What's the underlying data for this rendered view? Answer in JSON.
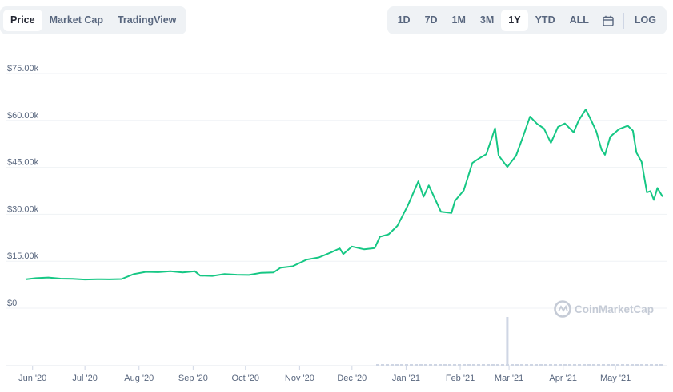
{
  "view_tabs": [
    {
      "label": "Price",
      "active": true
    },
    {
      "label": "Market Cap",
      "active": false
    },
    {
      "label": "TradingView",
      "active": false
    }
  ],
  "range_tabs": [
    {
      "label": "1D",
      "active": false
    },
    {
      "label": "7D",
      "active": false
    },
    {
      "label": "1M",
      "active": false
    },
    {
      "label": "3M",
      "active": false
    },
    {
      "label": "1Y",
      "active": true
    },
    {
      "label": "YTD",
      "active": false
    },
    {
      "label": "ALL",
      "active": false
    }
  ],
  "log_label": "LOG",
  "calendar_icon": "calendar-icon",
  "watermark": "CoinMarketCap",
  "colors": {
    "line": "#16c784",
    "volume": "#cfd6e4",
    "grid": "#eff2f5"
  },
  "chart_data": {
    "type": "line",
    "title": "",
    "xlabel": "",
    "ylabel": "",
    "y_tick_labels": [
      "$0",
      "$15.00k",
      "$30.00k",
      "$45.00k",
      "$60.00k",
      "$75.00k"
    ],
    "y_ticks": [
      0,
      15000,
      30000,
      45000,
      60000,
      75000
    ],
    "x_tick_labels": [
      "Jun '20",
      "Jul '20",
      "Aug '20",
      "Sep '20",
      "Oct '20",
      "Nov '20",
      "Dec '20",
      "Jan '21",
      "Feb '21",
      "Mar '21",
      "Apr '21",
      "May '21"
    ],
    "x_ticks": [
      "2020-06-01",
      "2020-07-01",
      "2020-08-01",
      "2020-09-01",
      "2020-10-01",
      "2020-11-01",
      "2020-12-01",
      "2021-01-01",
      "2021-02-01",
      "2021-03-01",
      "2021-04-01",
      "2021-05-01"
    ],
    "x_range": [
      "2020-05-28",
      "2021-05-28"
    ],
    "ylim": [
      0,
      78000
    ],
    "grid": true,
    "series": [
      {
        "values": [
          [
            "2020-05-28",
            9200
          ],
          [
            "2020-06-03",
            9600
          ],
          [
            "2020-06-10",
            9800
          ],
          [
            "2020-06-17",
            9450
          ],
          [
            "2020-06-24",
            9400
          ],
          [
            "2020-07-01",
            9150
          ],
          [
            "2020-07-08",
            9250
          ],
          [
            "2020-07-15",
            9200
          ],
          [
            "2020-07-22",
            9300
          ],
          [
            "2020-07-29",
            10900
          ],
          [
            "2020-08-05",
            11600
          ],
          [
            "2020-08-12",
            11500
          ],
          [
            "2020-08-19",
            11800
          ],
          [
            "2020-08-26",
            11400
          ],
          [
            "2020-09-02",
            11800
          ],
          [
            "2020-09-05",
            10400
          ],
          [
            "2020-09-12",
            10300
          ],
          [
            "2020-09-19",
            10900
          ],
          [
            "2020-09-26",
            10700
          ],
          [
            "2020-10-03",
            10600
          ],
          [
            "2020-10-10",
            11300
          ],
          [
            "2020-10-17",
            11400
          ],
          [
            "2020-10-21",
            12900
          ],
          [
            "2020-10-28",
            13400
          ],
          [
            "2020-11-05",
            15500
          ],
          [
            "2020-11-12",
            16200
          ],
          [
            "2020-11-19",
            17800
          ],
          [
            "2020-11-24",
            19100
          ],
          [
            "2020-11-26",
            17300
          ],
          [
            "2020-12-01",
            19700
          ],
          [
            "2020-12-08",
            18800
          ],
          [
            "2020-12-14",
            19200
          ],
          [
            "2020-12-17",
            22800
          ],
          [
            "2020-12-22",
            23600
          ],
          [
            "2020-12-27",
            26300
          ],
          [
            "2021-01-02",
            32800
          ],
          [
            "2021-01-08",
            40500
          ],
          [
            "2021-01-11",
            35600
          ],
          [
            "2021-01-14",
            39200
          ],
          [
            "2021-01-21",
            30800
          ],
          [
            "2021-01-27",
            30400
          ],
          [
            "2021-01-29",
            34300
          ],
          [
            "2021-02-03",
            37600
          ],
          [
            "2021-02-08",
            46400
          ],
          [
            "2021-02-12",
            47900
          ],
          [
            "2021-02-16",
            49200
          ],
          [
            "2021-02-21",
            57500
          ],
          [
            "2021-02-23",
            48800
          ],
          [
            "2021-02-28",
            45100
          ],
          [
            "2021-03-05",
            48700
          ],
          [
            "2021-03-09",
            54800
          ],
          [
            "2021-03-13",
            61200
          ],
          [
            "2021-03-17",
            58900
          ],
          [
            "2021-03-21",
            57400
          ],
          [
            "2021-03-25",
            52800
          ],
          [
            "2021-03-29",
            57900
          ],
          [
            "2021-04-02",
            59000
          ],
          [
            "2021-04-07",
            56200
          ],
          [
            "2021-04-10",
            60100
          ],
          [
            "2021-04-14",
            63500
          ],
          [
            "2021-04-17",
            60100
          ],
          [
            "2021-04-20",
            56500
          ],
          [
            "2021-04-23",
            50600
          ],
          [
            "2021-04-25",
            49000
          ],
          [
            "2021-04-28",
            54800
          ],
          [
            "2021-05-03",
            57200
          ],
          [
            "2021-05-08",
            58300
          ],
          [
            "2021-05-11",
            56700
          ],
          [
            "2021-05-13",
            49700
          ],
          [
            "2021-05-16",
            46700
          ],
          [
            "2021-05-19",
            37000
          ],
          [
            "2021-05-21",
            37400
          ],
          [
            "2021-05-23",
            34600
          ],
          [
            "2021-05-25",
            38400
          ],
          [
            "2021-05-28",
            35600
          ]
        ]
      }
    ],
    "volume_spike": {
      "date": "2021-02-28"
    }
  }
}
